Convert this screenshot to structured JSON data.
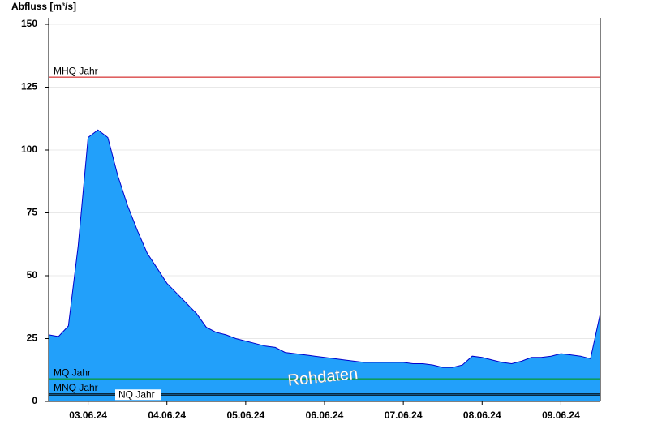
{
  "chart_data": {
    "type": "area",
    "y_label": "Abfluss [m³/s]",
    "annotation": "Rohdaten",
    "x": [
      "2024-06-03T00:00",
      "2024-06-03T03:00",
      "2024-06-03T06:00",
      "2024-06-03T09:00",
      "2024-06-03T12:00",
      "2024-06-03T15:00",
      "2024-06-03T18:00",
      "2024-06-03T21:00",
      "2024-06-04T00:00",
      "2024-06-04T03:00",
      "2024-06-04T06:00",
      "2024-06-04T09:00",
      "2024-06-04T12:00",
      "2024-06-04T15:00",
      "2024-06-04T18:00",
      "2024-06-04T21:00",
      "2024-06-05T00:00",
      "2024-06-05T03:00",
      "2024-06-05T06:00",
      "2024-06-05T09:00",
      "2024-06-05T12:00",
      "2024-06-05T15:00",
      "2024-06-05T18:00",
      "2024-06-05T21:00",
      "2024-06-06T00:00",
      "2024-06-06T03:00",
      "2024-06-06T06:00",
      "2024-06-06T09:00",
      "2024-06-06T12:00",
      "2024-06-06T15:00",
      "2024-06-06T18:00",
      "2024-06-06T21:00",
      "2024-06-07T00:00",
      "2024-06-07T03:00",
      "2024-06-07T06:00",
      "2024-06-07T09:00",
      "2024-06-07T12:00",
      "2024-06-07T15:00",
      "2024-06-07T18:00",
      "2024-06-07T21:00",
      "2024-06-08T00:00",
      "2024-06-08T03:00",
      "2024-06-08T06:00",
      "2024-06-08T09:00",
      "2024-06-08T12:00",
      "2024-06-08T15:00",
      "2024-06-08T18:00",
      "2024-06-08T21:00",
      "2024-06-09T00:00",
      "2024-06-09T03:00",
      "2024-06-09T06:00",
      "2024-06-09T09:00",
      "2024-06-09T12:00",
      "2024-06-09T15:00",
      "2024-06-09T18:00",
      "2024-06-09T21:00",
      "2024-06-10T00:00"
    ],
    "series": [
      {
        "color": "#22a0fa",
        "line_color": "#0000cc",
        "values": [
          26.5,
          25.8,
          30,
          62,
          105,
          108,
          105,
          90,
          78,
          68,
          59,
          53,
          47,
          43,
          39,
          35,
          29.5,
          27.5,
          26.5,
          25,
          24,
          23,
          22,
          21.5,
          19.5,
          19,
          18.5,
          18,
          17.5,
          17,
          16.5,
          16,
          15.5,
          15.5,
          15.5,
          15.5,
          15.5,
          15,
          15,
          14.5,
          13.5,
          13.5,
          14.5,
          18,
          17.5,
          16.5,
          15.5,
          15,
          16,
          17.5,
          17.5,
          18,
          19,
          18.5,
          18,
          17,
          35
        ]
      }
    ],
    "reference_lines": [
      {
        "label": "MHQ Jahr",
        "value": 129,
        "color": "#cc0000"
      },
      {
        "label": "MQ Jahr",
        "value": 9,
        "color": "#009900"
      },
      {
        "label": "MNQ Jahr",
        "value": 3,
        "color": "#000000"
      },
      {
        "label": "NQ Jahr",
        "value": 2.5,
        "color": "#000000"
      }
    ],
    "xlim": [
      "2024-06-03T00:00",
      "2024-06-10T00:00"
    ],
    "xticks": [
      {
        "value": "2024-06-03T12:00",
        "label": "03.06.24"
      },
      {
        "value": "2024-06-04T12:00",
        "label": "04.06.24"
      },
      {
        "value": "2024-06-05T12:00",
        "label": "05.06.24"
      },
      {
        "value": "2024-06-06T12:00",
        "label": "06.06.24"
      },
      {
        "value": "2024-06-07T12:00",
        "label": "07.06.24"
      },
      {
        "value": "2024-06-08T12:00",
        "label": "08.06.24"
      },
      {
        "value": "2024-06-09T12:00",
        "label": "09.06.24"
      }
    ],
    "ylim": [
      0,
      150
    ],
    "yticks": [
      0,
      25,
      50,
      75,
      100,
      125,
      150
    ],
    "grid": true
  }
}
